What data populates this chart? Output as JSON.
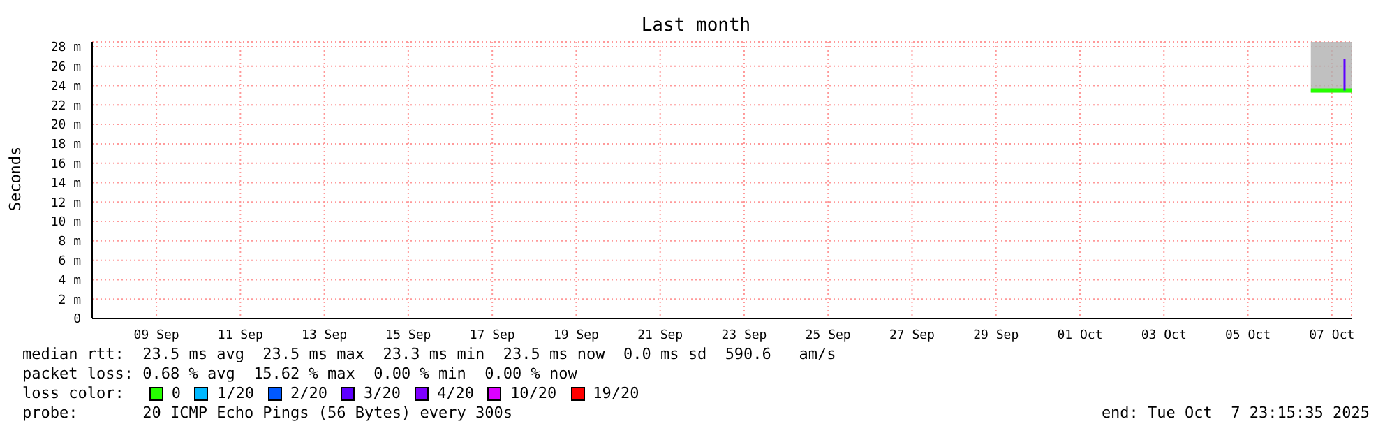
{
  "chart_data": {
    "type": "line",
    "title": "Last month",
    "ylabel": "Seconds",
    "legend_title": "loss color:",
    "legend": "bottom",
    "grid": true,
    "xlim": [
      "2025-09-07T23:15",
      "2025-10-07T23:15"
    ],
    "xticks": [
      {
        "value": "2025-09-09T12:00",
        "label": "09 Sep"
      },
      {
        "value": "2025-09-11T12:00",
        "label": "11 Sep"
      },
      {
        "value": "2025-09-13T12:00",
        "label": "13 Sep"
      },
      {
        "value": "2025-09-15T12:00",
        "label": "15 Sep"
      },
      {
        "value": "2025-09-17T12:00",
        "label": "17 Sep"
      },
      {
        "value": "2025-09-19T12:00",
        "label": "19 Sep"
      },
      {
        "value": "2025-09-21T12:00",
        "label": "21 Sep"
      },
      {
        "value": "2025-09-23T12:00",
        "label": "23 Sep"
      },
      {
        "value": "2025-09-25T12:00",
        "label": "25 Sep"
      },
      {
        "value": "2025-09-27T12:00",
        "label": "27 Sep"
      },
      {
        "value": "2025-09-29T12:00",
        "label": "29 Sep"
      },
      {
        "value": "2025-10-01T12:00",
        "label": "01 Oct"
      },
      {
        "value": "2025-10-03T12:00",
        "label": "03 Oct"
      },
      {
        "value": "2025-10-05T12:00",
        "label": "05 Oct"
      },
      {
        "value": "2025-10-07T12:00",
        "label": "07 Oct"
      }
    ],
    "ylim": [
      0,
      28.5
    ],
    "yticks": [
      {
        "value": 0,
        "label": "0"
      },
      {
        "value": 2,
        "label": "2 m"
      },
      {
        "value": 4,
        "label": "4 m"
      },
      {
        "value": 6,
        "label": "6 m"
      },
      {
        "value": 8,
        "label": "8 m"
      },
      {
        "value": 10,
        "label": "10 m"
      },
      {
        "value": 12,
        "label": "12 m"
      },
      {
        "value": 14,
        "label": "14 m"
      },
      {
        "value": 16,
        "label": "16 m"
      },
      {
        "value": 18,
        "label": "18 m"
      },
      {
        "value": 20,
        "label": "20 m"
      },
      {
        "value": 22,
        "label": "22 m"
      },
      {
        "value": 24,
        "label": "24 m"
      },
      {
        "value": 26,
        "label": "26 m"
      },
      {
        "value": 28,
        "label": "28 m"
      }
    ],
    "series": [
      {
        "name": "0",
        "color": "#26ff00",
        "x": [
          "2025-10-07T00:00",
          "2025-10-07T06:00",
          "2025-10-07T12:00",
          "2025-10-07T18:00",
          "2025-10-07T23:15"
        ],
        "values": [
          23.5,
          23.5,
          23.5,
          23.5,
          23.5
        ],
        "lower": [
          23.3,
          23.3,
          23.3,
          23.3,
          23.3
        ],
        "upper": [
          28.5,
          28.5,
          28.5,
          28.5,
          28.5
        ]
      },
      {
        "name": "1/20",
        "color": "#00b8ff"
      },
      {
        "name": "2/20",
        "color": "#0059ff"
      },
      {
        "name": "3/20",
        "color": "#5e00ff",
        "x": [
          "2025-10-07T19:15",
          "2025-10-07T19:15"
        ],
        "values": [
          23.5,
          26.7
        ]
      },
      {
        "name": "4/20",
        "color": "#7e00ff"
      },
      {
        "name": "10/20",
        "color": "#dd00ff"
      },
      {
        "name": "19/20",
        "color": "#ff0000"
      }
    ],
    "annotations": [
      "median rtt:  23.5 ms avg  23.5 ms max  23.3 ms min  23.5 ms now  0.0 ms sd  590.6   am/s",
      "packet loss: 0.68 % avg  15.62 % max  0.00 % min  0.00 % now",
      "probe:       20 ICMP Echo Pings (56 Bytes) every 300s",
      "end: Tue Oct  7 23:15:35 2025"
    ]
  }
}
